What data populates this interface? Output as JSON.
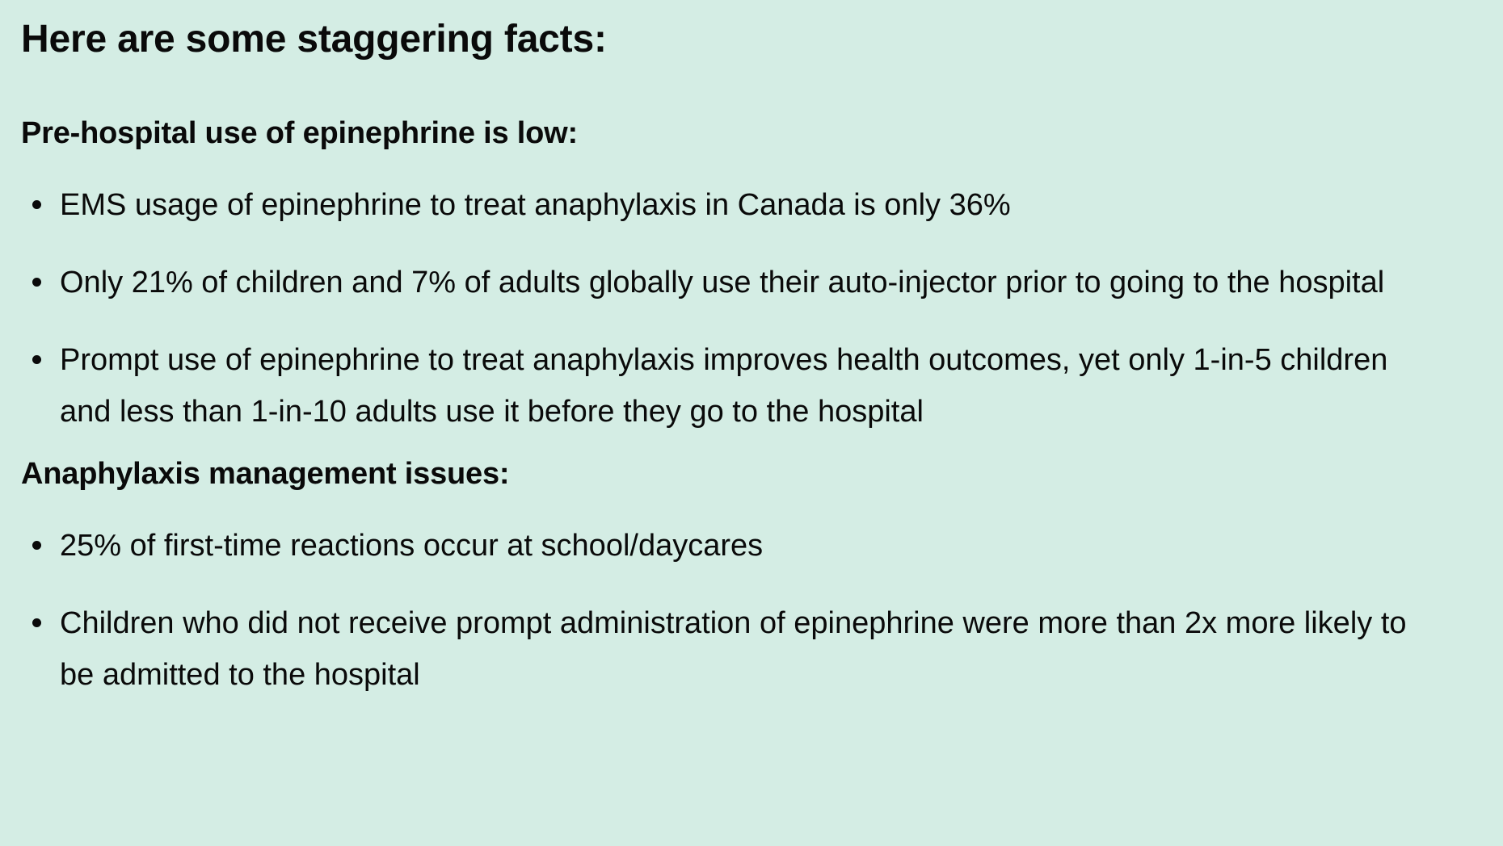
{
  "title": "Here are some staggering facts:",
  "sections": [
    {
      "heading": "Pre-hospital use of epinephrine is low:",
      "items": [
        "EMS usage of epinephrine to treat anaphylaxis in Canada is only 36%",
        "Only 21% of children and 7% of adults globally use their auto-injector prior to going to the hospital",
        "Prompt use of epinephrine to treat anaphylaxis improves health outcomes, yet only 1-in-5 children and less than 1-in-10 adults use it before they go to the hospital"
      ]
    },
    {
      "heading": "Anaphylaxis management issues:",
      "items": [
        "25% of first-time reactions occur at school/daycares",
        "Children who did not receive prompt administration of epinephrine were more than 2x more likely to be admitted to the hospital"
      ]
    }
  ],
  "icons": {
    "bullet": "bullet-dot-icon"
  },
  "colors": {
    "background": "#d4ede4",
    "text": "#0a0a0a"
  }
}
